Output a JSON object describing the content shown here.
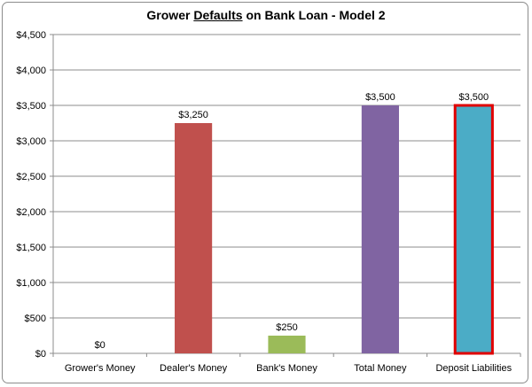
{
  "chart_data": {
    "type": "bar",
    "title_before": "Grower ",
    "title_underlined": "Defaults",
    "title_after": " on Bank Loan - Model 2",
    "categories": [
      "Grower's Money",
      "Dealer's Money",
      "Bank's Money",
      "Total Money",
      "Deposit Liabilities"
    ],
    "values": [
      0,
      3250,
      250,
      3500,
      3500
    ],
    "data_labels": [
      "$0",
      "$3,250",
      "$250",
      "$3,500",
      "$3,500"
    ],
    "colors": [
      "#4f81bd",
      "#c0504d",
      "#9bbb59",
      "#8064a2",
      "#4bacc6"
    ],
    "highlight_outline_color": "#e00000",
    "highlighted_category": "Deposit Liabilities",
    "ylim": [
      0,
      4500
    ],
    "y_ticks": [
      0,
      500,
      1000,
      1500,
      2000,
      2500,
      3000,
      3500,
      4000,
      4500
    ],
    "y_tick_labels": [
      "$0",
      "$500",
      "$1,000",
      "$1,500",
      "$2,000",
      "$2,500",
      "$3,000",
      "$3,500",
      "$4,000",
      "$4,500"
    ],
    "grid": true,
    "legend": false
  }
}
